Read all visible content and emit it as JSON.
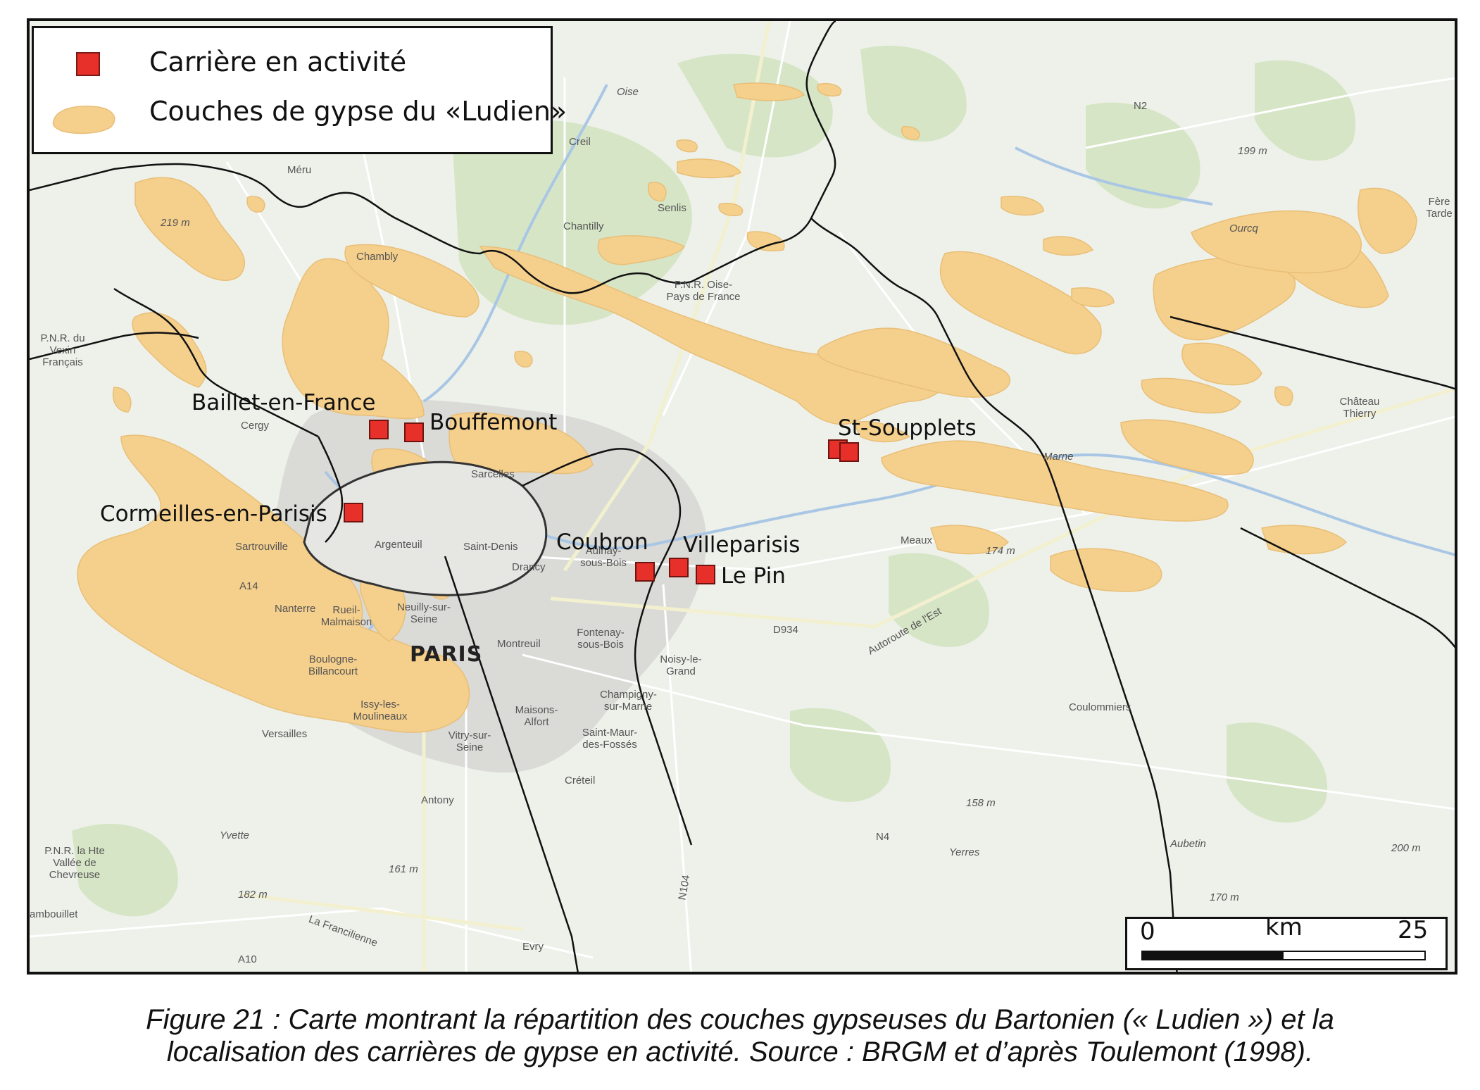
{
  "legend": {
    "quarry_label": "Carrière en activité",
    "gypsum_label": "Couches de gypse du «Ludien»"
  },
  "colors": {
    "quarry": "#e8302a",
    "gypsum": "#f5cf8c",
    "base_land": "#eef1ea",
    "forest": "#d4e3c4",
    "urban": "#d9d9d6",
    "border": "#111111"
  },
  "quarry_sites": [
    {
      "name": "Baillet-en-France"
    },
    {
      "name": "Bouffemont"
    },
    {
      "name": "Cormeilles-en-Parisis"
    },
    {
      "name": "Coubron"
    },
    {
      "name": "Villeparisis"
    },
    {
      "name": "Le Pin"
    },
    {
      "name": "St-Soupplets"
    }
  ],
  "basemap_labels": {
    "paris": "PARIS",
    "meru": "Méru",
    "creil": "Creil",
    "senlis": "Senlis",
    "chantilly": "Chantilly",
    "chambly": "Chambly",
    "pnr_oise": "P.N.R. Oise-Pays de France",
    "pnr_vexin": "P.N.R. du Vexin Français",
    "cergy": "Cergy",
    "sarcelles": "Sarcelles",
    "sartrouville": "Sartrouville",
    "argenteuil": "Argenteuil",
    "saint_denis": "Saint-Denis",
    "drancy": "Drancy",
    "aulnay": "Aulnay-sous-Bois",
    "nanterre": "Nanterre",
    "rueil": "Rueil-Malmaison",
    "neuilly": "Neuilly-sur-Seine",
    "montreuil": "Montreuil",
    "fontenay": "Fontenay-sous-Bois",
    "noisy": "Noisy-le-Grand",
    "boulogne": "Boulogne-Billancourt",
    "issy": "Issy-les-Moulineaux",
    "versailles": "Versailles",
    "vitry": "Vitry-sur-Seine",
    "maisons": "Maisons-Alfort",
    "champigny": "Champigny-sur-Marne",
    "saint_maur": "Saint-Maur-des-Fossés",
    "creteil": "Créteil",
    "antony": "Antony",
    "meaux": "Meaux",
    "coulommiers": "Coulommiers",
    "chateau_thierry": "Château Thierry",
    "fere": "Fère Tarde",
    "rambouillet": "ambouillet",
    "evry": "Evry",
    "pnr_chevreuse": "P.N.R. la Hte Vallée de Chevreuse",
    "elev_219": "219 m",
    "elev_199": "199 m",
    "elev_174": "174 m",
    "elev_158": "158 m",
    "elev_182": "182 m",
    "elev_200": "200 m",
    "elev_170": "170 m",
    "elev_161": "161 m",
    "marne": "Marne",
    "ourcq": "Ourcq",
    "aubetin": "Aubetin",
    "yerres": "Yerres",
    "yvette": "Yvette",
    "autoroute_est": "Autoroute de l'Est",
    "n2": "N2",
    "n4": "N4",
    "d934": "D934",
    "a14": "A14",
    "a10": "A10",
    "n104": "N104",
    "la_francilienne": "La Francilienne",
    "oise": "Oise"
  },
  "scalebar": {
    "start": "0",
    "unit": "km",
    "end": "25"
  },
  "caption": {
    "line1": "Figure 21 : Carte montrant la répartition des couches gypseuses du Bartonien (« Ludien ») et la",
    "line2": "localisation des carrières de gypse en activité. Source : BRGM et d’après Toulemont (1998)."
  }
}
